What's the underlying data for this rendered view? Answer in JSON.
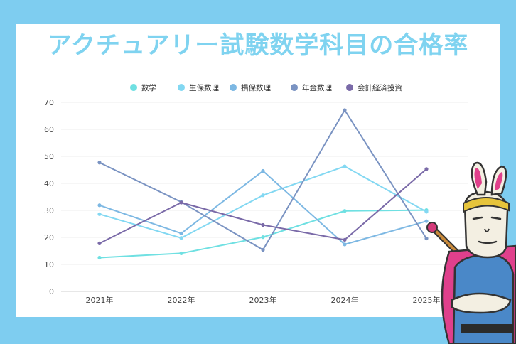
{
  "title": "アクチュアリー試験数学科目の合格率",
  "chart_data": {
    "type": "line",
    "categories": [
      "2021年",
      "2022年",
      "2023年",
      "2024年",
      "2025年"
    ],
    "ylim": [
      0,
      70
    ],
    "yticks": [
      0,
      10,
      20,
      30,
      40,
      50,
      60,
      70
    ],
    "grid": true,
    "legend": "top-center",
    "series": [
      {
        "name": "数学",
        "color": "#6fe0e2",
        "values": [
          12.5,
          14.1,
          20.1,
          29.8,
          30.1
        ]
      },
      {
        "name": "生保数理",
        "color": "#83d8f2",
        "values": [
          28.6,
          19.8,
          35.6,
          46.3,
          29.5
        ]
      },
      {
        "name": "損保数理",
        "color": "#7db8e3",
        "values": [
          31.9,
          21.5,
          44.6,
          17.4,
          26.0
        ]
      },
      {
        "name": "年金数理",
        "color": "#7a93c2",
        "values": [
          47.7,
          33.1,
          15.4,
          67.1,
          19.6
        ]
      },
      {
        "name": "会計経済投資",
        "color": "#7a6aa8",
        "values": [
          17.8,
          32.9,
          24.6,
          19.1,
          45.3
        ]
      }
    ]
  }
}
